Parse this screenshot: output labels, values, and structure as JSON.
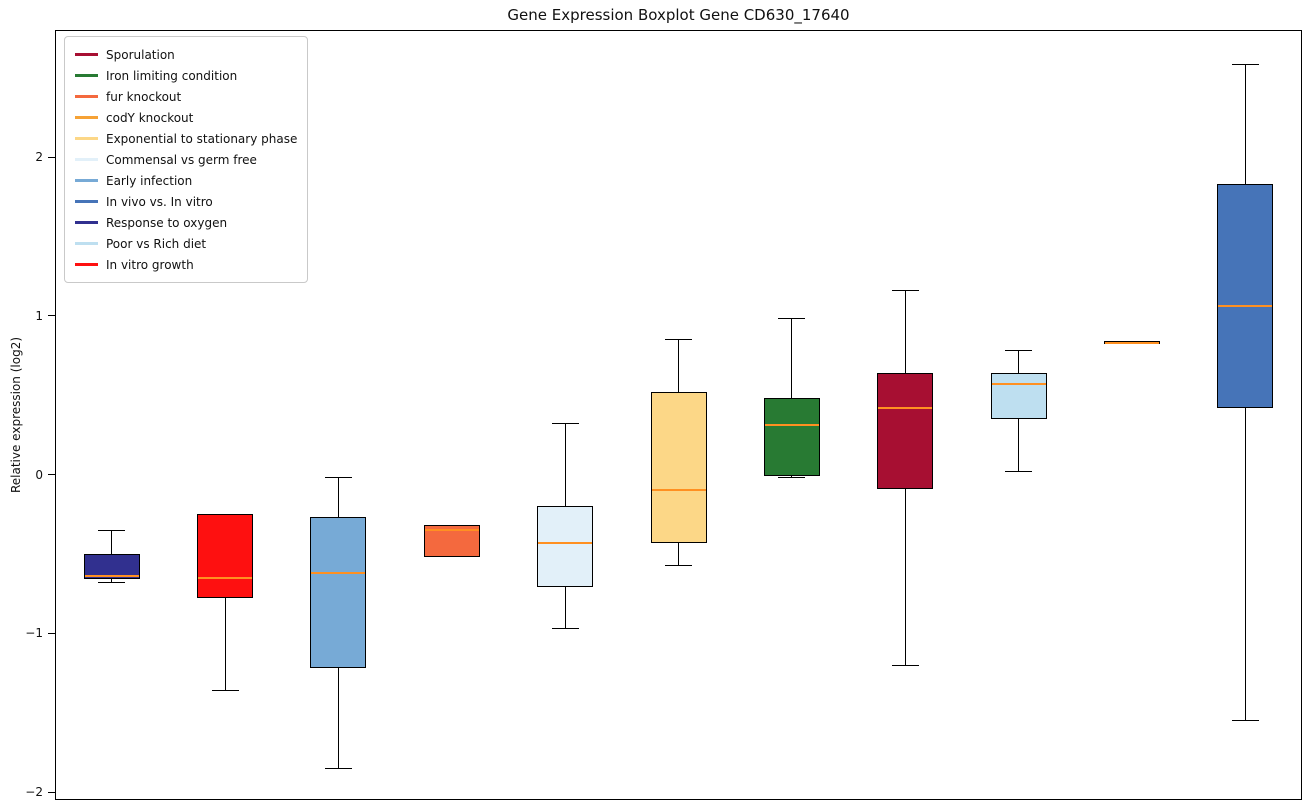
{
  "chart_data": {
    "type": "boxplot",
    "title": "Gene Expression Boxplot Gene CD630_17640",
    "ylabel": "Relative expression (log2)",
    "ylim": [
      -2.05,
      2.8
    ],
    "yticks": [
      -2,
      -1,
      0,
      1,
      2
    ],
    "ytick_labels": [
      "−2",
      "−1",
      "0",
      "1",
      "2"
    ],
    "grid": false,
    "legend_position": "upper left",
    "median_color": "#ff9021",
    "box_edge_color": "#000000",
    "series": [
      {
        "label": "Response to oxygen",
        "color": "#31308f",
        "whisker_low": -0.68,
        "q1": -0.66,
        "median": -0.64,
        "q3": -0.5,
        "whisker_high": -0.35
      },
      {
        "label": "In vitro growth",
        "color": "#fe1010",
        "whisker_low": -1.36,
        "q1": -0.78,
        "median": -0.65,
        "q3": -0.25,
        "whisker_high": -0.25
      },
      {
        "label": "Early infection",
        "color": "#77aad6",
        "whisker_low": -1.85,
        "q1": -1.22,
        "median": -0.62,
        "q3": -0.27,
        "whisker_high": -0.02
      },
      {
        "label": "fur knockout",
        "color": "#f4693e",
        "whisker_low": -0.52,
        "q1": -0.52,
        "median": -0.35,
        "q3": -0.32,
        "whisker_high": -0.32
      },
      {
        "label": "Commensal vs germ free",
        "color": "#e2f0f9",
        "whisker_low": -0.97,
        "q1": -0.71,
        "median": -0.43,
        "q3": -0.2,
        "whisker_high": 0.32
      },
      {
        "label": "Exponential to stationary phase",
        "color": "#fcd787",
        "whisker_low": -0.57,
        "q1": -0.43,
        "median": -0.1,
        "q3": 0.52,
        "whisker_high": 0.85
      },
      {
        "label": "Iron limiting condition",
        "color": "#287a33",
        "whisker_low": -0.02,
        "q1": -0.01,
        "median": 0.31,
        "q3": 0.48,
        "whisker_high": 0.98
      },
      {
        "label": "Sporulation",
        "color": "#a70f32",
        "whisker_low": -1.2,
        "q1": -0.09,
        "median": 0.42,
        "q3": 0.64,
        "whisker_high": 1.16
      },
      {
        "label": "Poor vs Rich diet",
        "color": "#bedff0",
        "whisker_low": 0.02,
        "q1": 0.35,
        "median": 0.57,
        "q3": 0.64,
        "whisker_high": 0.78
      },
      {
        "label": "codY knockout",
        "color": "#f6a235",
        "whisker_low": 0.82,
        "q1": 0.82,
        "median": 0.83,
        "q3": 0.84,
        "whisker_high": 0.84
      },
      {
        "label": "In vivo vs. In vitro",
        "color": "#4674b8",
        "whisker_low": -1.55,
        "q1": 0.42,
        "median": 1.06,
        "q3": 1.83,
        "whisker_high": 2.58
      }
    ],
    "legend": [
      {
        "label": "Sporulation",
        "color": "#a70f32"
      },
      {
        "label": "Iron limiting condition",
        "color": "#287a33"
      },
      {
        "label": "fur knockout",
        "color": "#f4693e"
      },
      {
        "label": "codY knockout",
        "color": "#f6a235"
      },
      {
        "label": "Exponential to stationary phase",
        "color": "#fcd787"
      },
      {
        "label": "Commensal vs germ free",
        "color": "#e2f0f9"
      },
      {
        "label": "Early infection",
        "color": "#77aad6"
      },
      {
        "label": "In vivo vs. In vitro",
        "color": "#4674b8"
      },
      {
        "label": "Response to oxygen",
        "color": "#31308f"
      },
      {
        "label": "Poor vs Rich diet",
        "color": "#bedff0"
      },
      {
        "label": "In vitro growth",
        "color": "#fe1010"
      }
    ]
  }
}
